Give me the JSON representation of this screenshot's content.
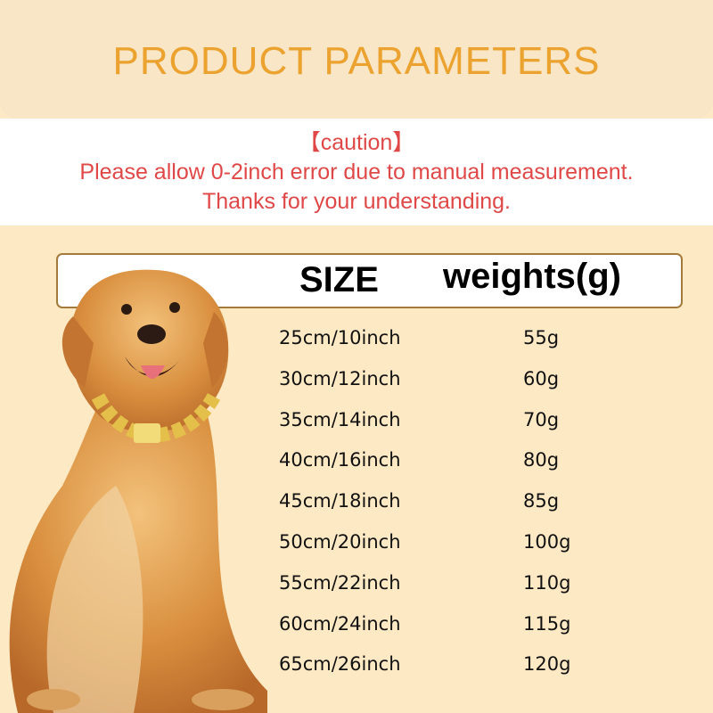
{
  "header": {
    "title": "PRODUCT PARAMETERS"
  },
  "caution": {
    "label": "【caution】",
    "line1": "Please allow 0-2inch error due to manual measurement.",
    "line2": "Thanks for your understanding."
  },
  "table": {
    "headers": {
      "size": "SIZE",
      "weight": "weights(g)"
    },
    "rows": [
      {
        "size": "25cm/10inch",
        "weight": "55g"
      },
      {
        "size": "30cm/12inch",
        "weight": "60g"
      },
      {
        "size": "35cm/14inch",
        "weight": "70g"
      },
      {
        "size": "40cm/16inch",
        "weight": "80g"
      },
      {
        "size": "45cm/18inch",
        "weight": "85g"
      },
      {
        "size": "50cm/20inch",
        "weight": "100g"
      },
      {
        "size": "55cm/22inch",
        "weight": "110g"
      },
      {
        "size": "60cm/24inch",
        "weight": "115g"
      },
      {
        "size": "65cm/26inch",
        "weight": "120g"
      }
    ]
  },
  "colors": {
    "title": "#eba22f",
    "caution": "#e04848",
    "background": "#fde9c4"
  },
  "image": {
    "subject": "golden-retriever-with-gold-chain-collar"
  }
}
